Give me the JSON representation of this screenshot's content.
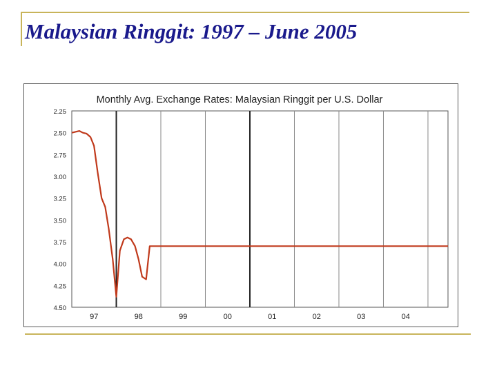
{
  "slide": {
    "title": "Malaysian Ringgit: 1997 – June 2005"
  },
  "chart_data": {
    "type": "line",
    "title": "Monthly Avg. Exchange Rates: Malaysian Ringgit per U.S. Dollar",
    "xlabel": "",
    "ylabel": "",
    "y_inverted": true,
    "ylim": [
      2.25,
      4.5
    ],
    "xlim": [
      1997.0,
      2005.45
    ],
    "yticks": [
      "2.25",
      "2.50",
      "2.75",
      "3.00",
      "3.25",
      "3.50",
      "3.75",
      "4.00",
      "4.25",
      "4.50"
    ],
    "ytick_values": [
      2.25,
      2.5,
      2.75,
      3.0,
      3.25,
      3.5,
      3.75,
      4.0,
      4.25,
      4.5
    ],
    "xticks": [
      "97",
      "98",
      "99",
      "00",
      "01",
      "02",
      "03",
      "04"
    ],
    "xtick_values": [
      1997.5,
      1998.5,
      1999.5,
      2000.5,
      2001.5,
      2002.5,
      2003.5,
      2004.5
    ],
    "grid": true,
    "line_color": "#c0391b",
    "series": [
      {
        "x": [
          1997.0,
          1997.08,
          1997.17,
          1997.25,
          1997.33,
          1997.42,
          1997.5,
          1997.58,
          1997.67,
          1997.75,
          1997.83,
          1997.92,
          1998.0,
          1998.08,
          1998.17,
          1998.25,
          1998.33,
          1998.42,
          1998.5,
          1998.58,
          1998.67,
          1998.75,
          1998.83,
          2000.0,
          2005.45
        ],
        "y": [
          2.5,
          2.49,
          2.48,
          2.5,
          2.51,
          2.55,
          2.65,
          2.95,
          3.25,
          3.35,
          3.6,
          3.95,
          4.38,
          3.85,
          3.72,
          3.7,
          3.72,
          3.8,
          3.95,
          4.15,
          4.18,
          3.8,
          3.8,
          3.8,
          3.8
        ]
      }
    ]
  }
}
